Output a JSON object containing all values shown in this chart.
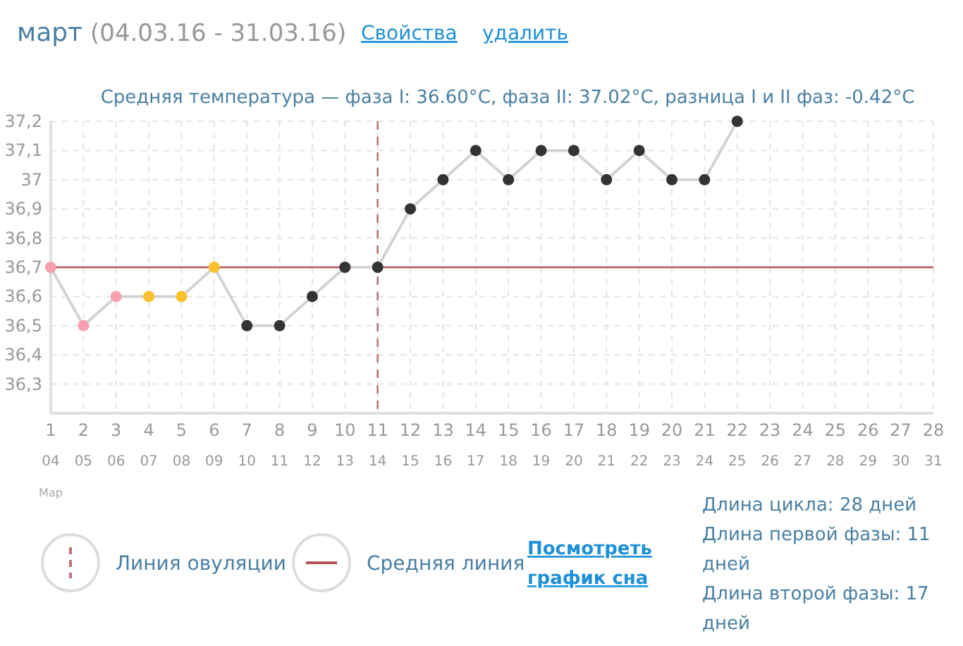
{
  "chart_data": {
    "type": "line",
    "title": "март",
    "subtitle": "Средняя температура — фаза I: 36.60°C, фаза II: 37.02°C, разница I и II фаз: -0.42°C",
    "annotations": [
      "(04.03.16 - 31.03.16)",
      "Свойства",
      "удалить",
      "Мар",
      "Посмотреть график сна",
      "Длина цикла: 28 дней",
      "Длина первой фазы: 11 дней",
      "Длина второй фазы: 17 дней"
    ],
    "categories": [
      "1\n04",
      "2\n05",
      "3\n06",
      "4\n07",
      "5\n08",
      "6\n09",
      "7\n10",
      "8\n11",
      "9\n12",
      "10\n13",
      "11\n14",
      "12\n15",
      "13\n16",
      "14\n17",
      "15\n18",
      "16\n19",
      "17\n20",
      "18\n21",
      "19\n22",
      "20\n23",
      "21\n24",
      "22\n25",
      "23\n26",
      "24\n27",
      "25\n28",
      "26\n29",
      "27\n30",
      "28\n31"
    ],
    "series": [
      {
        "color": "#d3d3d3",
        "colors": [
          "#f7a1b0",
          "#f7a1b0",
          "#f7a1b0",
          "#fbc02d",
          "#fbc02d",
          "#fbc02d",
          "#333333",
          "#333333",
          "#333333",
          "#333333",
          "#333333",
          "#333333",
          "#333333",
          "#333333",
          "#333333",
          "#333333",
          "#333333",
          "#333333",
          "#333333",
          "#333333",
          "#333333",
          "#333333",
          null,
          null,
          null,
          null,
          null,
          null
        ],
        "values": [
          36.7,
          36.5,
          36.6,
          36.6,
          36.6,
          36.7,
          36.5,
          36.5,
          36.6,
          36.7,
          36.7,
          36.9,
          37.0,
          37.1,
          37.0,
          37.1,
          37.1,
          37.0,
          37.1,
          37.0,
          37.0,
          37.2,
          null,
          null,
          null,
          null,
          null,
          null
        ]
      }
    ],
    "ylim": [
      36.2,
      37.2
    ],
    "yticks": [
      {
        "value": 36.3,
        "label": "36,3"
      },
      {
        "value": 36.4,
        "label": "36,4"
      },
      {
        "value": 36.5,
        "label": "36,5"
      },
      {
        "value": 36.6,
        "label": "36,6"
      },
      {
        "value": 36.7,
        "label": "36,7"
      },
      {
        "value": 36.8,
        "label": "36,8"
      },
      {
        "value": 36.9,
        "label": "36,9"
      },
      37,
      {
        "value": 37.1,
        "label": "37,1"
      },
      {
        "value": 37.2,
        "label": "37,2"
      }
    ],
    "grid": true,
    "marker": "circle",
    "line_style": "solid",
    "legend": "bottom",
    "ref_lines": [
      {
        "axis": "x",
        "value": "11\n14",
        "label": "Линия овуляции",
        "color": "#c0707a",
        "line_style": "dashed"
      },
      {
        "axis": "y",
        "value": 36.7,
        "label": "Средняя линия",
        "color": "#b5555b",
        "line_style": "solid"
      }
    ]
  }
}
